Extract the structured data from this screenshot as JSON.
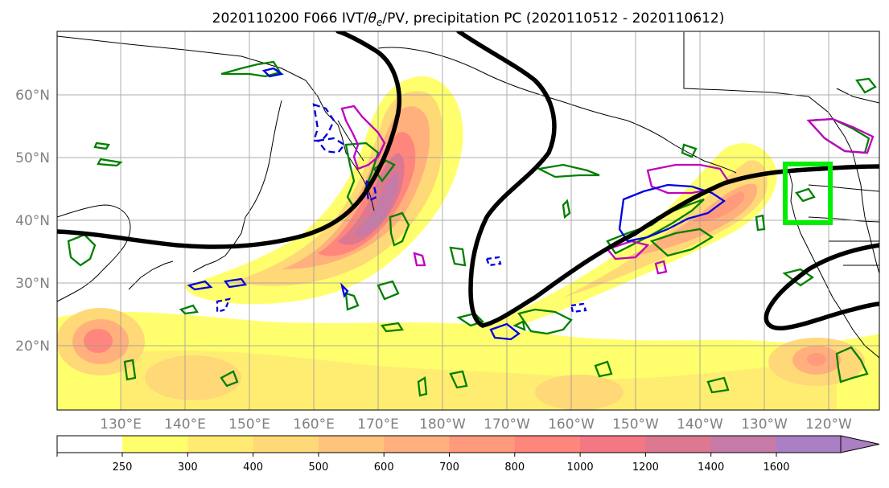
{
  "title_main": "2020110200 F066 IVT/",
  "title_theta": "θ",
  "title_sub": "e",
  "title_rest": "/PV, precipitation PC (2020110512 - 2020110612)",
  "lat_labels": [
    "60°N",
    "50°N",
    "40°N",
    "30°N",
    "20°N"
  ],
  "lon_labels": [
    "130°E",
    "140°E",
    "150°E",
    "160°E",
    "170°E",
    "180°W",
    "170°W",
    "160°W",
    "150°W",
    "140°W",
    "130°W",
    "120°W"
  ],
  "colorbar_levels": [
    "250",
    "300",
    "400",
    "500",
    "600",
    "700",
    "800",
    "1000",
    "1200",
    "1400",
    "1600"
  ],
  "colorbar_colors": [
    "#ffff6e",
    "#ffeb72",
    "#ffd878",
    "#ffc47c",
    "#ffb07c",
    "#ff9a7c",
    "#ff867c",
    "#f27883",
    "#dc788f",
    "#c67aa7",
    "#ab7fc3"
  ],
  "colors": {
    "ivt_low": "#ffff6e",
    "ivt_high": "#ab7fc3",
    "pv_contour": "#000000",
    "theta_warm": "#c000c0",
    "theta_cold": "#0000e0",
    "precip": "#008000",
    "target_box": "#00ee00"
  }
}
